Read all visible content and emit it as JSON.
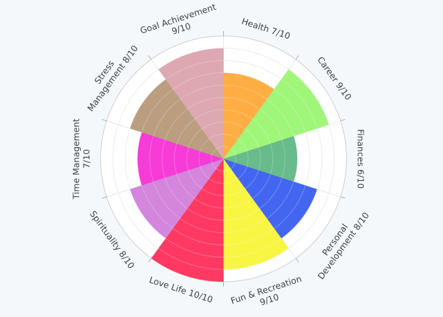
{
  "chart_data": {
    "type": "polar-bar",
    "title": "",
    "r_range": [
      0,
      10
    ],
    "grid": true,
    "categories": [
      {
        "label_lines": [
          "Health 7/10"
        ],
        "value": 7,
        "color": "#ffa530"
      },
      {
        "label_lines": [
          "Career 9/10"
        ],
        "value": 9,
        "color": "#96f56a"
      },
      {
        "label_lines": [
          "Finances 6/10"
        ],
        "value": 6,
        "color": "#58b47d"
      },
      {
        "label_lines": [
          "Personal",
          "Development 8/10"
        ],
        "value": 8,
        "color": "#2f55f0"
      },
      {
        "label_lines": [
          "Fun & Recreation",
          "9/10"
        ],
        "value": 9,
        "color": "#f7f52f"
      },
      {
        "label_lines": [
          "Love Life 10/10"
        ],
        "value": 10,
        "color": "#ff2450"
      },
      {
        "label_lines": [
          "Spirituality 8/10"
        ],
        "value": 8,
        "color": "#cf78d8"
      },
      {
        "label_lines": [
          "Time Management",
          "7/10"
        ],
        "value": 7,
        "color": "#f526d2"
      },
      {
        "label_lines": [
          "Stress",
          "Management 8/10"
        ],
        "value": 8,
        "color": "#b39471"
      },
      {
        "label_lines": [
          "Goal Achievement",
          "9/10"
        ],
        "value": 9,
        "color": "#d99ea9"
      }
    ]
  }
}
